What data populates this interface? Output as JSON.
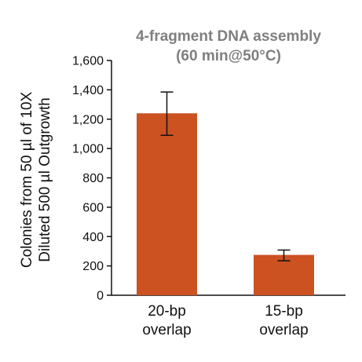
{
  "chart_data": {
    "type": "bar",
    "title_lines": [
      "4-fragment DNA assembly",
      "(60 min@50°C)"
    ],
    "ylabel_lines": [
      "Colonies from 50 µl of 10X",
      "Diluted 500 µl Outgrowth"
    ],
    "xlabel": "",
    "categories": [
      [
        "20-bp",
        "overlap"
      ],
      [
        "15-bp",
        "overlap"
      ]
    ],
    "values": [
      1240,
      275
    ],
    "error_low": [
      1090,
      235
    ],
    "error_high": [
      1385,
      308
    ],
    "ylim": [
      0,
      1600
    ],
    "yticks": [
      "0",
      "200",
      "400",
      "600",
      "800",
      "1,000",
      "1,200",
      "1,400",
      "1,600"
    ],
    "ytick_values": [
      0,
      200,
      400,
      600,
      800,
      1000,
      1200,
      1400,
      1600
    ],
    "grid": false,
    "bar_color": "#cc5222",
    "axis_color": "#111111",
    "title_color": "#7f7f7f"
  }
}
